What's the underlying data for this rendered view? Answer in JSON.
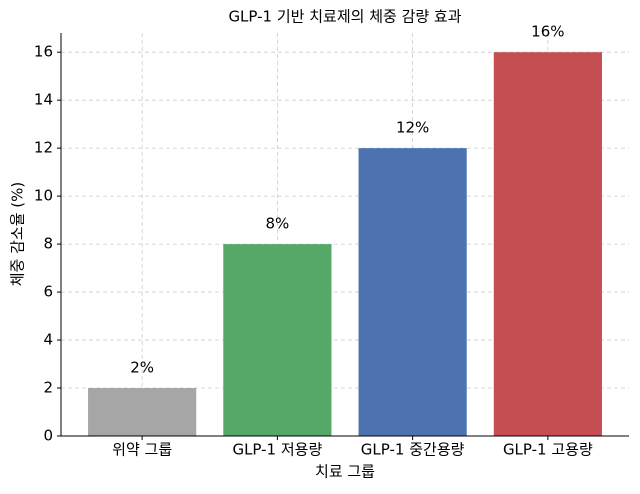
{
  "chart_data": {
    "type": "bar",
    "title": "GLP-1 기반 치료제의 체중 감량 효과",
    "x_label": "치료 그룹",
    "y_label": "체중 감소율 (%)",
    "categories": [
      "위약 그룹",
      "GLP-1 저용량",
      "GLP-1 중간용량",
      "GLP-1 고용량"
    ],
    "values": [
      2,
      8,
      12,
      16
    ],
    "value_labels": [
      "2%",
      "8%",
      "12%",
      "16%"
    ],
    "colors": [
      "#a6a6a6",
      "#55a868",
      "#4c72b0",
      "#c44e52"
    ],
    "ylim": [
      0,
      16.8
    ],
    "yticks": [
      0,
      2,
      4,
      6,
      8,
      10,
      12,
      14,
      16
    ],
    "grid": true
  }
}
